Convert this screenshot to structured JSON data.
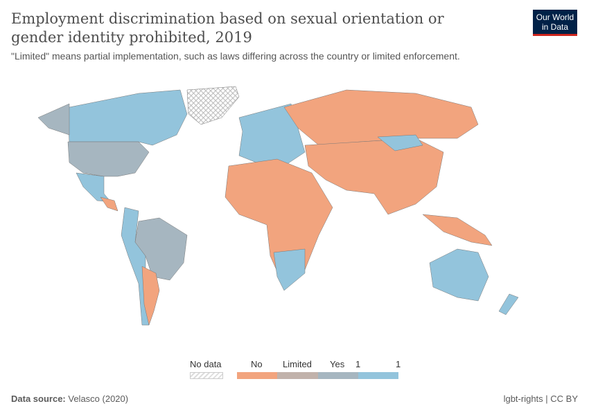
{
  "title": "Employment discrimination based on sexual orientation or gender identity prohibited, 2019",
  "subtitle": "\"Limited\" means partial implementation, such as laws differing across the country or limited enforcement.",
  "logo": {
    "line1": "Our World",
    "line2": "in Data"
  },
  "legend": {
    "no_data": "No data",
    "items": [
      {
        "label": "No",
        "color": "#f2a47e"
      },
      {
        "label": "Limited",
        "color": "#c1b2ab"
      },
      {
        "label": "Yes",
        "color": "#a6b6c0"
      },
      {
        "label": "1",
        "color": "#93c4dc"
      }
    ],
    "end_label": "1"
  },
  "colors": {
    "no": "#f2a47e",
    "limited": "#c1b2ab",
    "yes": "#a6b6c0",
    "yes1": "#93c4dc"
  },
  "footer": {
    "source_label": "Data source:",
    "source": "Velasco (2020)",
    "license": "lgbt-rights | CC BY"
  }
}
